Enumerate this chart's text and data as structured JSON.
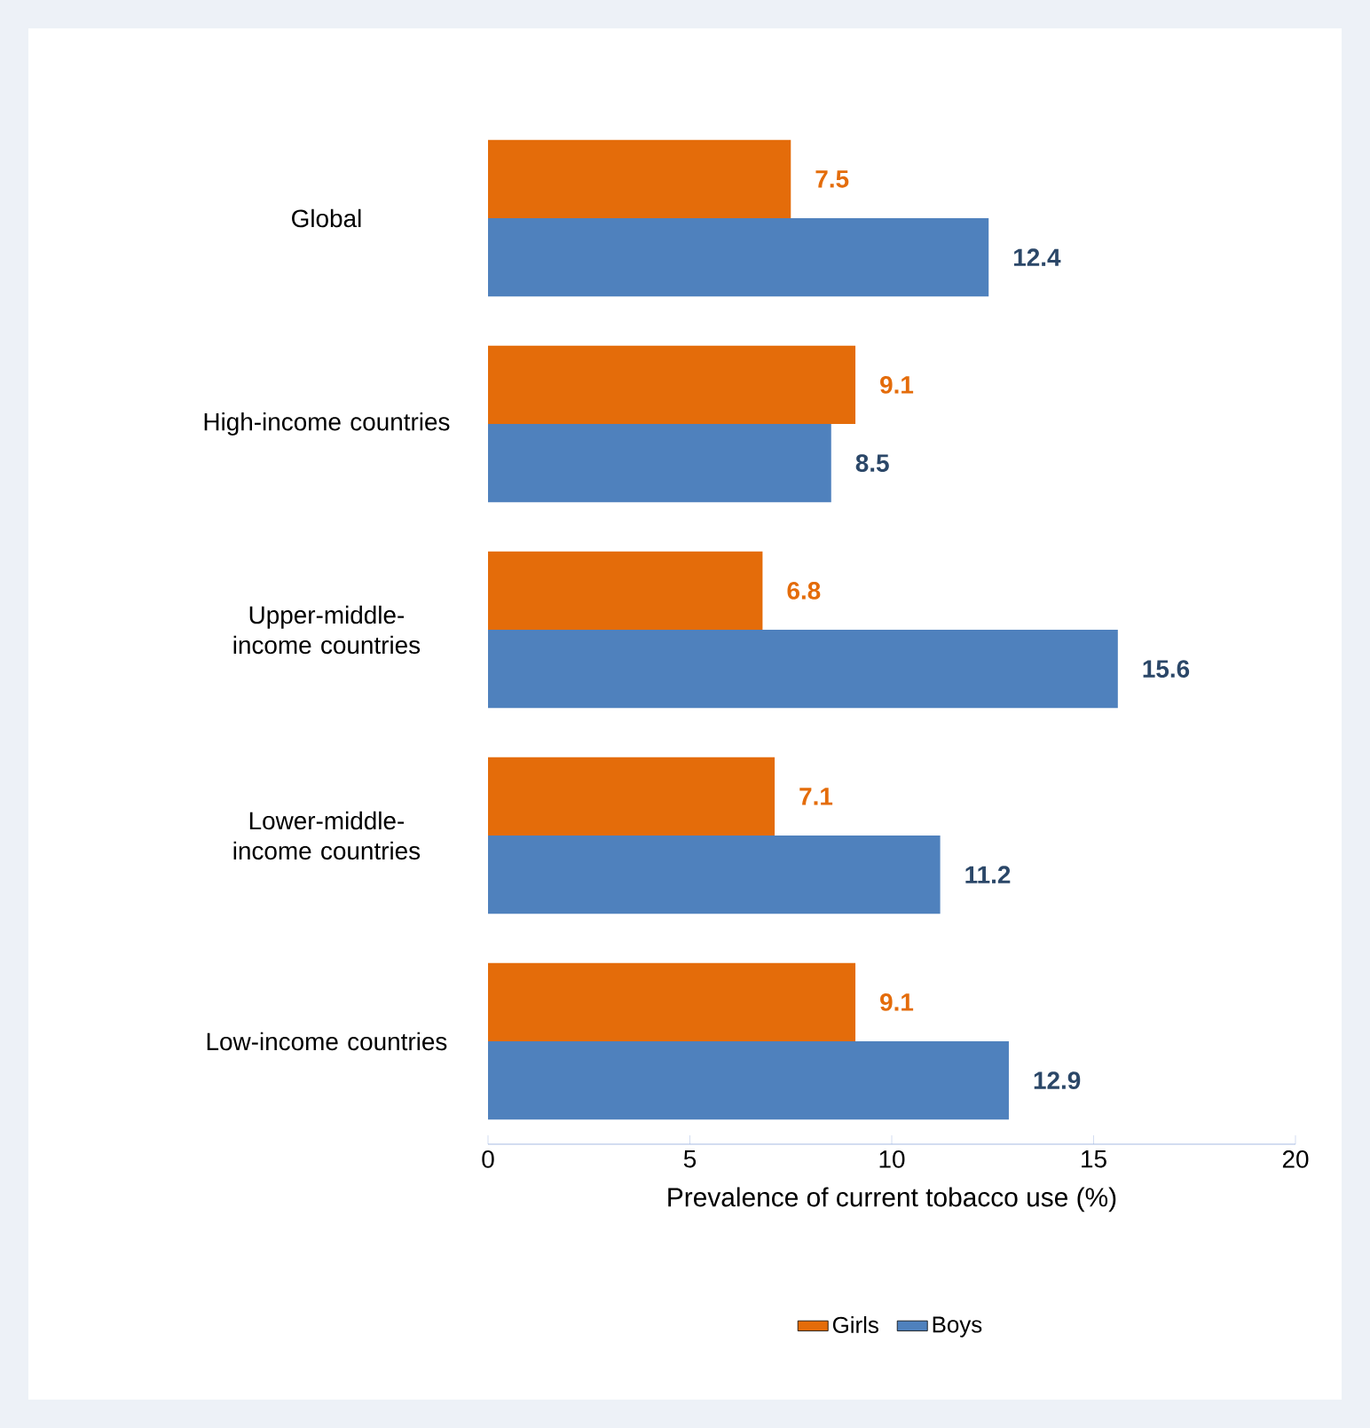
{
  "chart_data": {
    "type": "bar",
    "orientation": "horizontal",
    "xlabel": "Prevalence of current tobacco use (%)",
    "categories": [
      "Global",
      "High-income countries",
      "Upper-middle-income countries",
      "Lower-middle-income countries",
      "Low-income countries"
    ],
    "series": [
      {
        "name": "Girls",
        "color": "#e46c0a",
        "values": [
          7.5,
          9.1,
          6.8,
          7.1,
          9.1
        ]
      },
      {
        "name": "Boys",
        "color": "#4f81bd",
        "values": [
          12.4,
          8.5,
          15.6,
          11.2,
          12.9
        ]
      }
    ],
    "xlim": [
      0,
      20
    ],
    "xticks": [
      0,
      5,
      10,
      15,
      20
    ],
    "grid": false,
    "legend": "bottom",
    "data_labels": true
  }
}
